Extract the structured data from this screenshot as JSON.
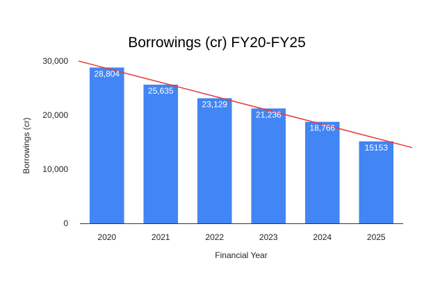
{
  "chart_data": {
    "type": "bar",
    "title": "Borrowings (cr) FY20-FY25",
    "xlabel": "Financial Year",
    "ylabel": "Borrowings (cr)",
    "categories": [
      "2020",
      "2021",
      "2022",
      "2023",
      "2024",
      "2025"
    ],
    "values": [
      28804,
      25635,
      23129,
      21236,
      18766,
      15153
    ],
    "data_labels": [
      "28,804",
      "25,635",
      "23,129",
      "21,236",
      "18,766",
      "15153"
    ],
    "ylim": [
      0,
      30000
    ],
    "yticks": [
      0,
      10000,
      20000,
      30000
    ],
    "ytick_labels": [
      "0",
      "10,000",
      "20,000",
      "30,000"
    ],
    "trendline": {
      "type": "linear",
      "color": "#e8383a",
      "start_value": 30000,
      "end_value": 14000
    },
    "bar_color": "#4285f4",
    "grid": false,
    "legend": "none"
  }
}
